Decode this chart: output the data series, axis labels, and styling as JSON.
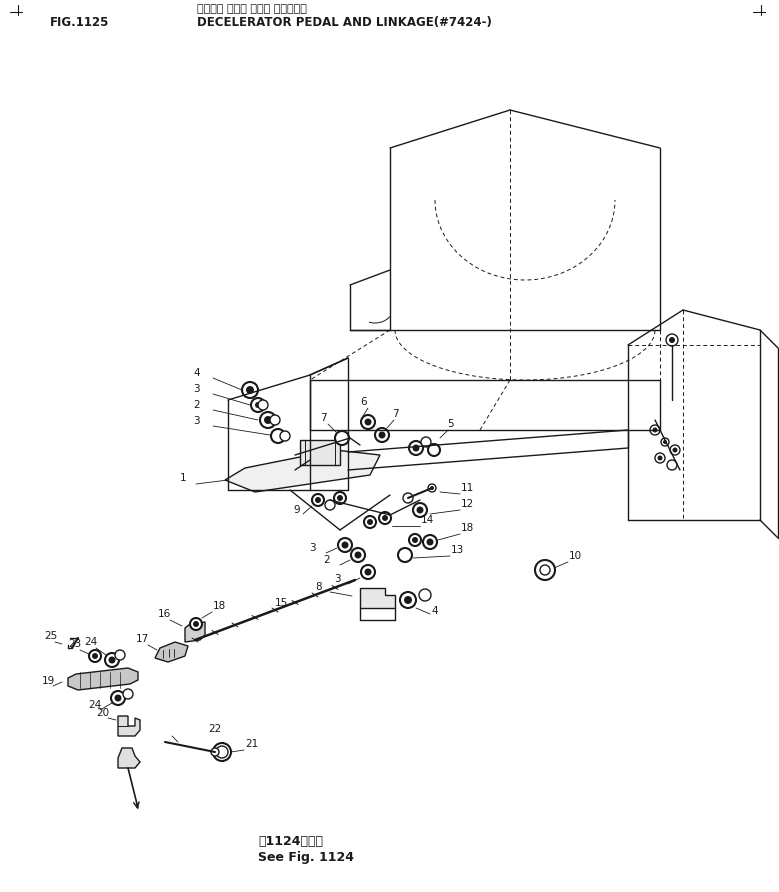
{
  "title_japanese": "デクセル ペダル および リンケージ",
  "title_english": "DECELERATOR PEDAL AND LINKAGE(#7424-)",
  "fig_number": "FIG.1125",
  "bottom_japanese": "第1124図参照",
  "bottom_english": "See Fig. 1124",
  "bg_color": "#ffffff",
  "line_color": "#1a1a1a"
}
